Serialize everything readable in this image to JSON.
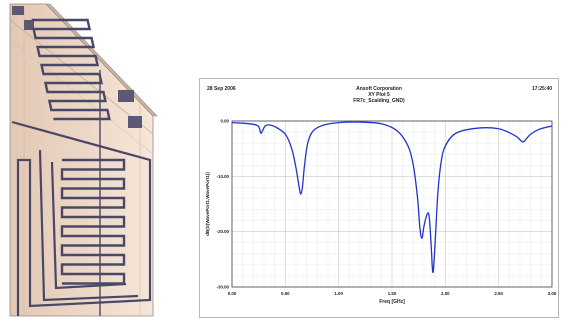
{
  "header": {
    "date": "28 Sep 2006",
    "company": "Ansoft Corporation",
    "plot_name": "XY Plot 5",
    "design": "FR7c_Scalding_GND)",
    "time": "17:25:40"
  },
  "chart_data": {
    "type": "line",
    "xlabel": "Freq [GHz]",
    "ylabel": "dB(S(WavePort1,WavePort1))",
    "xlim": [
      0.0,
      3.0
    ],
    "ylim": [
      -30.0,
      0.0
    ],
    "x_ticks": [
      "0.00",
      "0.50",
      "1.00",
      "1.50",
      "2.00",
      "2.50",
      "3.00"
    ],
    "y_ticks": [
      "0.00",
      "-10.00",
      "-20.00",
      "-30.00"
    ],
    "grid": true,
    "series": [
      {
        "color": "#2233cc",
        "x": [
          0.0,
          0.1,
          0.2,
          0.25,
          0.27,
          0.29,
          0.31,
          0.34,
          0.4,
          0.5,
          0.56,
          0.6,
          0.63,
          0.645,
          0.66,
          0.68,
          0.71,
          0.76,
          0.85,
          1.0,
          1.2,
          1.4,
          1.55,
          1.65,
          1.7,
          1.74,
          1.76,
          1.78,
          1.8,
          1.83,
          1.85,
          1.87,
          1.88,
          1.89,
          1.91,
          1.93,
          1.96,
          2.0,
          2.1,
          2.3,
          2.5,
          2.65,
          2.7,
          2.73,
          2.76,
          2.8,
          2.88,
          3.0
        ],
        "y": [
          -0.3,
          -0.4,
          -0.6,
          -1.0,
          -2.2,
          -1.6,
          -0.9,
          -0.7,
          -1.0,
          -2.4,
          -5.0,
          -8.5,
          -12.0,
          -13.2,
          -12.0,
          -8.0,
          -4.0,
          -1.8,
          -0.8,
          -0.3,
          -0.2,
          -0.5,
          -1.8,
          -4.5,
          -8.0,
          -14.0,
          -19.0,
          -21.2,
          -19.0,
          -16.8,
          -17.5,
          -23.5,
          -27.0,
          -26.5,
          -20.0,
          -13.0,
          -7.5,
          -4.5,
          -2.2,
          -1.3,
          -1.4,
          -2.6,
          -3.4,
          -3.8,
          -3.2,
          -2.4,
          -1.5,
          -0.9
        ]
      }
    ]
  }
}
